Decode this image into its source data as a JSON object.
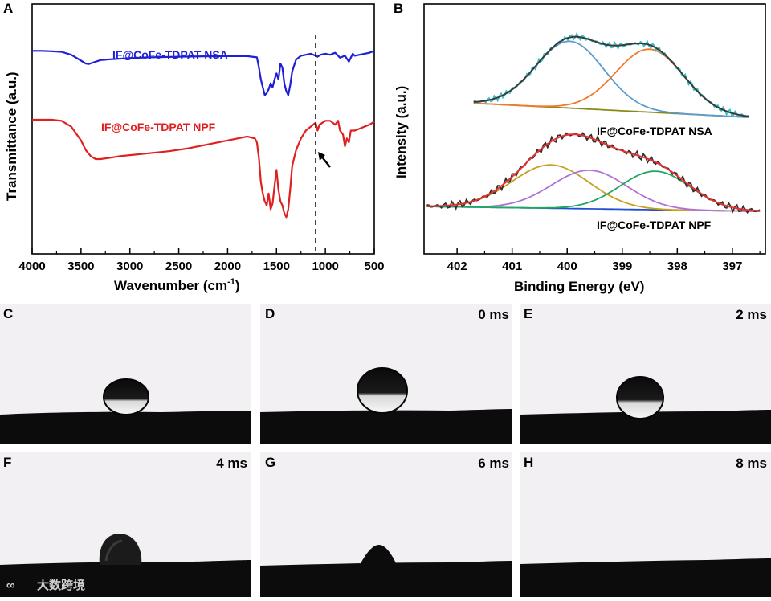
{
  "chart_data": [
    {
      "panel": "A",
      "type": "line",
      "title": "",
      "xlabel": "Wavenumber (cm-1)",
      "xlabel_main": "Wavenumber (cm",
      "xlabel_sup": "-1",
      "xlabel_end": ")",
      "ylabel": "Transmittance (a.u.)",
      "xlim": [
        4000,
        500
      ],
      "ylim": [
        0,
        1
      ],
      "xticks": [
        "4000",
        "3500",
        "3000",
        "2500",
        "2000",
        "1500",
        "1000",
        "500"
      ],
      "reference_line_x": 1100,
      "annotation": "arrow at ~1080 cm-1 on NPF trace",
      "series": [
        {
          "name": "IF@CoFe-TDPAT NSA",
          "color": "#1f1fd6",
          "x": [
            4000,
            3900,
            3800,
            3700,
            3600,
            3500,
            3450,
            3420,
            3380,
            3300,
            3200,
            3000,
            2800,
            2500,
            2200,
            2000,
            1800,
            1700,
            1680,
            1660,
            1640,
            1620,
            1600,
            1580,
            1560,
            1540,
            1520,
            1500,
            1480,
            1460,
            1440,
            1420,
            1400,
            1380,
            1360,
            1340,
            1300,
            1250,
            1200,
            1150,
            1100,
            1080,
            1050,
            1000,
            950,
            900,
            850,
            800,
            760,
            720,
            700,
            650,
            600,
            550,
            500
          ],
          "y": [
            0.905,
            0.905,
            0.903,
            0.9,
            0.885,
            0.855,
            0.84,
            0.838,
            0.845,
            0.858,
            0.862,
            0.868,
            0.872,
            0.875,
            0.877,
            0.878,
            0.878,
            0.872,
            0.82,
            0.76,
            0.72,
            0.68,
            0.69,
            0.71,
            0.74,
            0.72,
            0.76,
            0.79,
            0.76,
            0.84,
            0.82,
            0.74,
            0.7,
            0.68,
            0.73,
            0.8,
            0.86,
            0.88,
            0.885,
            0.89,
            0.88,
            0.875,
            0.885,
            0.89,
            0.885,
            0.895,
            0.87,
            0.88,
            0.85,
            0.89,
            0.88,
            0.885,
            0.89,
            0.895,
            0.905
          ]
        },
        {
          "name": "IF@CoFe-TDPAT NPF",
          "color": "#e02020",
          "x": [
            4000,
            3900,
            3800,
            3700,
            3600,
            3500,
            3450,
            3400,
            3350,
            3300,
            3200,
            3100,
            3000,
            2800,
            2600,
            2400,
            2200,
            2000,
            1800,
            1720,
            1700,
            1680,
            1660,
            1640,
            1620,
            1600,
            1580,
            1560,
            1540,
            1520,
            1500,
            1480,
            1460,
            1440,
            1420,
            1400,
            1380,
            1360,
            1340,
            1300,
            1250,
            1200,
            1150,
            1100,
            1080,
            1060,
            1000,
            950,
            900,
            870,
            850,
            820,
            800,
            780,
            760,
            740,
            700,
            650,
            600,
            550,
            500
          ],
          "y": [
            0.555,
            0.555,
            0.555,
            0.55,
            0.52,
            0.45,
            0.4,
            0.37,
            0.355,
            0.355,
            0.362,
            0.37,
            0.375,
            0.385,
            0.395,
            0.41,
            0.43,
            0.45,
            0.47,
            0.46,
            0.44,
            0.36,
            0.24,
            0.18,
            0.14,
            0.12,
            0.18,
            0.1,
            0.13,
            0.22,
            0.3,
            0.2,
            0.14,
            0.12,
            0.08,
            0.06,
            0.1,
            0.2,
            0.32,
            0.4,
            0.46,
            0.5,
            0.52,
            0.54,
            0.5,
            0.53,
            0.55,
            0.55,
            0.53,
            0.55,
            0.5,
            0.48,
            0.42,
            0.46,
            0.44,
            0.5,
            0.5,
            0.51,
            0.52,
            0.53,
            0.545
          ]
        }
      ]
    },
    {
      "panel": "B",
      "type": "line",
      "title": "",
      "xlabel": "Binding Energy (eV)",
      "ylabel": "Intensity (a.u.)",
      "xlim": [
        402.6,
        396.4
      ],
      "ylim": [
        0,
        1
      ],
      "xticks": [
        "402",
        "401",
        "400",
        "399",
        "398",
        "397"
      ],
      "series_labels": [
        "IF@CoFe-TDPAT NSA",
        "IF@CoFe-TDPAT NPF"
      ],
      "series": [
        {
          "name": "NSA raw",
          "color": "#36c0c8",
          "group": "NSA",
          "role": "raw"
        },
        {
          "name": "NSA envelope",
          "color": "#3a3a3a",
          "group": "NSA",
          "role": "envelope"
        },
        {
          "name": "NSA peak 1",
          "color": "#5a9bd0",
          "group": "NSA",
          "center": 399.95,
          "fwhm": 1.45,
          "height": 0.52
        },
        {
          "name": "NSA peak 2",
          "color": "#f07a2a",
          "group": "NSA",
          "center": 398.5,
          "fwhm": 1.45,
          "height": 0.49
        },
        {
          "name": "NSA background",
          "color": "#8a8a1a",
          "group": "NSA",
          "role": "background"
        },
        {
          "name": "NPF raw",
          "color": "#303030",
          "group": "NPF",
          "role": "raw"
        },
        {
          "name": "NPF envelope",
          "color": "#e83030",
          "group": "NPF",
          "role": "envelope"
        },
        {
          "name": "NPF peak 1",
          "color": "#c8a020",
          "group": "NPF",
          "center": 400.3,
          "fwhm": 1.65,
          "height": 0.27
        },
        {
          "name": "NPF peak 2",
          "color": "#b070d8",
          "group": "NPF",
          "center": 399.6,
          "fwhm": 1.6,
          "height": 0.24
        },
        {
          "name": "NPF peak 3",
          "color": "#20a860",
          "group": "NPF",
          "center": 398.4,
          "fwhm": 1.5,
          "height": 0.24
        },
        {
          "name": "NPF background",
          "color": "#2050d0",
          "group": "NPF",
          "role": "background"
        }
      ]
    }
  ],
  "photos": [
    {
      "id": "C",
      "time": "",
      "state": "droplet resting on surface"
    },
    {
      "id": "D",
      "time": "0 ms",
      "state": "droplet just touching"
    },
    {
      "id": "E",
      "time": "2 ms",
      "state": "droplet on surface"
    },
    {
      "id": "F",
      "time": "4 ms",
      "state": "droplet spreading"
    },
    {
      "id": "G",
      "time": "6 ms",
      "state": "small cap"
    },
    {
      "id": "H",
      "time": "8 ms",
      "state": "fully absorbed"
    }
  ],
  "watermark": "大数跨境"
}
